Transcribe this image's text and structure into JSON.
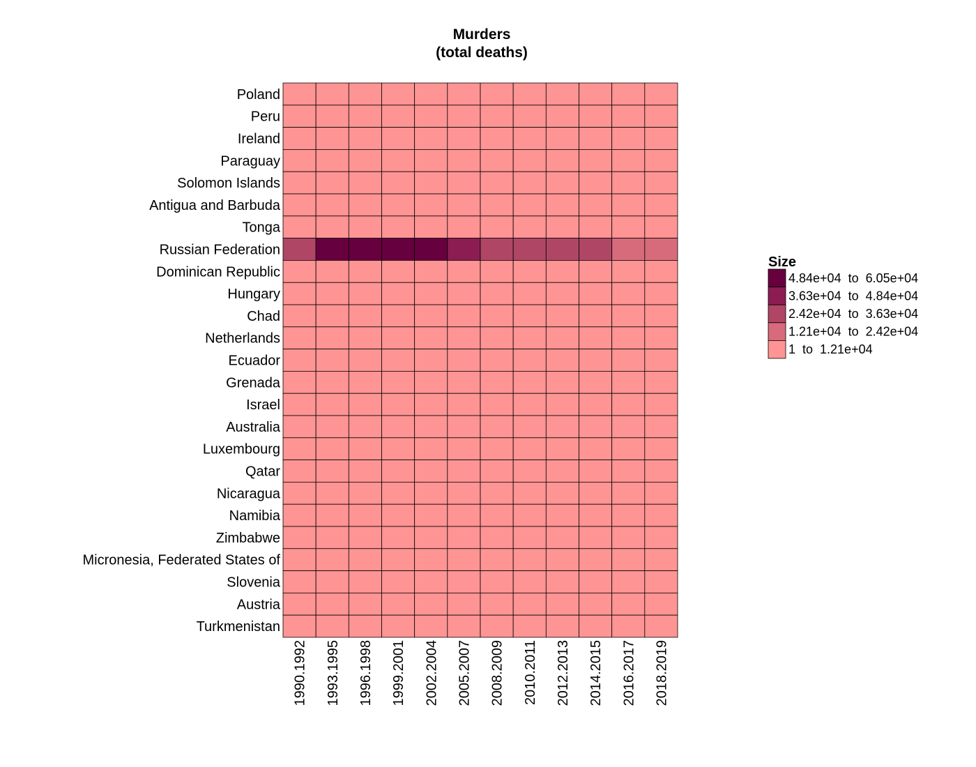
{
  "chart_data": {
    "type": "heatmap",
    "title_line1": "Murders",
    "title_line2": "(total deaths)",
    "xlabel": "",
    "ylabel": "",
    "grid": false,
    "legend_placement": "right",
    "columns": [
      "1990.1992",
      "1993.1995",
      "1996.1998",
      "1999.2001",
      "2002.2004",
      "2005.2007",
      "2008.2009",
      "2010.2011",
      "2012.2013",
      "2014.2015",
      "2016.2017",
      "2018.2019"
    ],
    "rows": [
      "Poland",
      "Peru",
      "Ireland",
      "Paraguay",
      "Solomon Islands",
      "Antigua and Barbuda",
      "Tonga",
      "Russian Federation",
      "Dominican Republic",
      "Hungary",
      "Chad",
      "Netherlands",
      "Ecuador",
      "Grenada",
      "Israel",
      "Australia",
      "Luxembourg",
      "Qatar",
      "Nicaragua",
      "Namibia",
      "Zimbabwe",
      "Micronesia, Federated States of",
      "Slovenia",
      "Austria",
      "Turkmenistan"
    ],
    "bins": [
      {
        "label": "4.84e+04  to  6.05e+04",
        "color": "#67003f"
      },
      {
        "label": "3.63e+04  to  4.84e+04",
        "color": "#8b1d52"
      },
      {
        "label": "2.42e+04  to  3.63e+04",
        "color": "#b04665"
      },
      {
        "label": "1.21e+04  to  2.42e+04",
        "color": "#d76b7b"
      },
      {
        "label": "1  to  1.21e+04",
        "color": "#ff9494"
      }
    ],
    "legend_title": "Size",
    "cell_bins": [
      [
        4,
        4,
        4,
        4,
        4,
        4,
        4,
        4,
        4,
        4,
        4,
        4
      ],
      [
        4,
        4,
        4,
        4,
        4,
        4,
        4,
        4,
        4,
        4,
        4,
        4
      ],
      [
        4,
        4,
        4,
        4,
        4,
        4,
        4,
        4,
        4,
        4,
        4,
        4
      ],
      [
        4,
        4,
        4,
        4,
        4,
        4,
        4,
        4,
        4,
        4,
        4,
        4
      ],
      [
        4,
        4,
        4,
        4,
        4,
        4,
        4,
        4,
        4,
        4,
        4,
        4
      ],
      [
        4,
        4,
        4,
        4,
        4,
        4,
        4,
        4,
        4,
        4,
        4,
        4
      ],
      [
        4,
        4,
        4,
        4,
        4,
        4,
        4,
        4,
        4,
        4,
        4,
        4
      ],
      [
        2,
        0,
        0,
        0,
        0,
        1,
        2,
        2,
        2,
        2,
        3,
        3
      ],
      [
        4,
        4,
        4,
        4,
        4,
        4,
        4,
        4,
        4,
        4,
        4,
        4
      ],
      [
        4,
        4,
        4,
        4,
        4,
        4,
        4,
        4,
        4,
        4,
        4,
        4
      ],
      [
        4,
        4,
        4,
        4,
        4,
        4,
        4,
        4,
        4,
        4,
        4,
        4
      ],
      [
        4,
        4,
        4,
        4,
        4,
        4,
        4,
        4,
        4,
        4,
        4,
        4
      ],
      [
        4,
        4,
        4,
        4,
        4,
        4,
        4,
        4,
        4,
        4,
        4,
        4
      ],
      [
        4,
        4,
        4,
        4,
        4,
        4,
        4,
        4,
        4,
        4,
        4,
        4
      ],
      [
        4,
        4,
        4,
        4,
        4,
        4,
        4,
        4,
        4,
        4,
        4,
        4
      ],
      [
        4,
        4,
        4,
        4,
        4,
        4,
        4,
        4,
        4,
        4,
        4,
        4
      ],
      [
        4,
        4,
        4,
        4,
        4,
        4,
        4,
        4,
        4,
        4,
        4,
        4
      ],
      [
        4,
        4,
        4,
        4,
        4,
        4,
        4,
        4,
        4,
        4,
        4,
        4
      ],
      [
        4,
        4,
        4,
        4,
        4,
        4,
        4,
        4,
        4,
        4,
        4,
        4
      ],
      [
        4,
        4,
        4,
        4,
        4,
        4,
        4,
        4,
        4,
        4,
        4,
        4
      ],
      [
        4,
        4,
        4,
        4,
        4,
        4,
        4,
        4,
        4,
        4,
        4,
        4
      ],
      [
        4,
        4,
        4,
        4,
        4,
        4,
        4,
        4,
        4,
        4,
        4,
        4
      ],
      [
        4,
        4,
        4,
        4,
        4,
        4,
        4,
        4,
        4,
        4,
        4,
        4
      ],
      [
        4,
        4,
        4,
        4,
        4,
        4,
        4,
        4,
        4,
        4,
        4,
        4
      ],
      [
        4,
        4,
        4,
        4,
        4,
        4,
        4,
        4,
        4,
        4,
        4,
        4
      ]
    ]
  }
}
